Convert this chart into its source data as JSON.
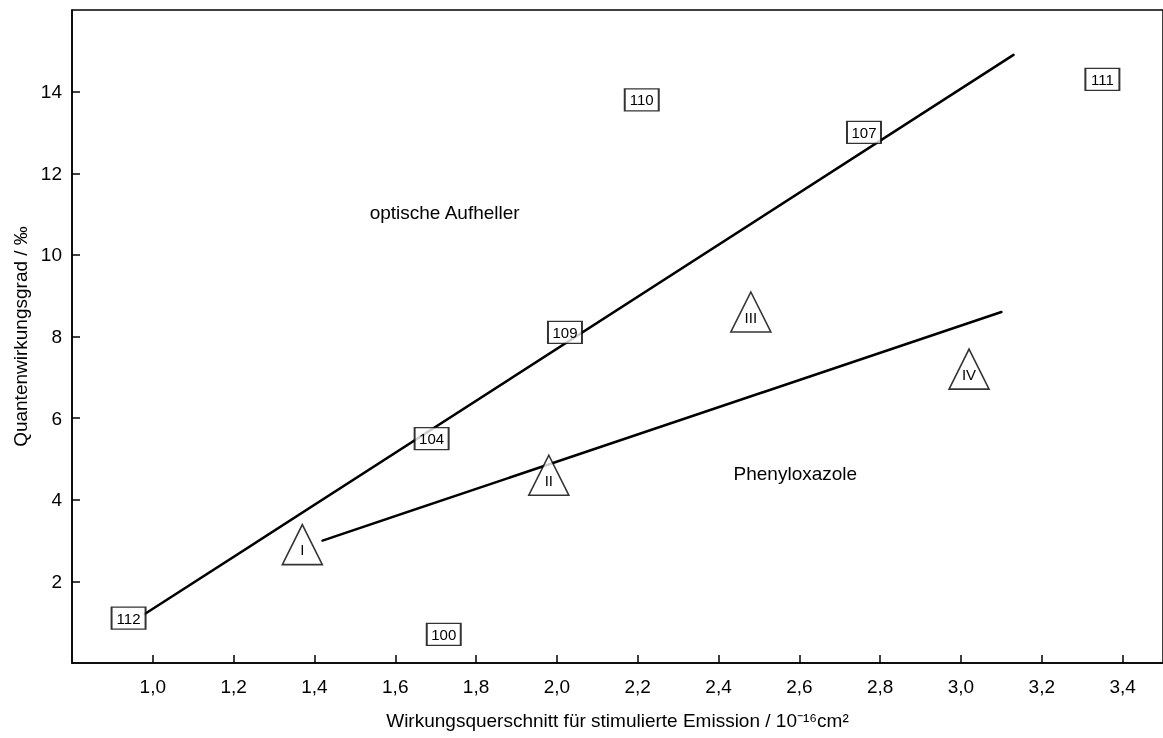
{
  "chart_data": {
    "type": "scatter",
    "xlabel": "Wirkungsquerschnitt für stimulierte Emission / 10⁻¹⁶cm²",
    "ylabel": "Quantenwirkungsgrad / ‰",
    "xlim": [
      0.8,
      3.5
    ],
    "ylim": [
      0,
      16
    ],
    "xticks": [
      {
        "value": 1.0,
        "label": "1,0"
      },
      {
        "value": 1.2,
        "label": "1,2"
      },
      {
        "value": 1.4,
        "label": "1,4"
      },
      {
        "value": 1.6,
        "label": "1,6"
      },
      {
        "value": 1.8,
        "label": "1,8"
      },
      {
        "value": 2.0,
        "label": "2,0"
      },
      {
        "value": 2.2,
        "label": "2,2"
      },
      {
        "value": 2.4,
        "label": "2,4"
      },
      {
        "value": 2.6,
        "label": "2,6"
      },
      {
        "value": 2.8,
        "label": "2,8"
      },
      {
        "value": 3.0,
        "label": "3,0"
      },
      {
        "value": 3.2,
        "label": "3,2"
      },
      {
        "value": 3.4,
        "label": "3,4"
      }
    ],
    "yticks": [
      2,
      4,
      6,
      8,
      10,
      12,
      14
    ],
    "grid": false,
    "annotations": [
      "optische Aufheller",
      "Phenyloxazole",
      {
        "text": "112",
        "x": 0.94,
        "y": 1.1
      },
      {
        "text": "104",
        "x": 1.69,
        "y": 5.5
      },
      {
        "text": "109",
        "x": 2.02,
        "y": 8.1
      },
      {
        "text": "107",
        "x": 2.76,
        "y": 13.0
      },
      {
        "text": "110",
        "x": 2.21,
        "y": 13.8
      },
      {
        "text": "111",
        "x": 3.35,
        "y": 14.3
      },
      {
        "text": "100",
        "x": 1.72,
        "y": 0.7
      },
      {
        "text": "I",
        "x": 1.37,
        "y": 2.9
      },
      {
        "text": "II",
        "x": 1.98,
        "y": 4.6
      },
      {
        "text": "III",
        "x": 2.48,
        "y": 8.6
      },
      {
        "text": "IV",
        "x": 3.02,
        "y": 7.2
      }
    ],
    "series": [
      {
        "type": "line",
        "marker": "none",
        "color": "#000000",
        "x": [
          0.98,
          3.13
        ],
        "values": [
          1.2,
          14.9
        ]
      },
      {
        "type": "line",
        "marker": "none",
        "color": "#000000",
        "x": [
          1.42,
          3.1
        ],
        "values": [
          3.0,
          8.6
        ]
      },
      {
        "marker": "square",
        "color": "#000000",
        "x": [
          0.94,
          1.69,
          2.02,
          2.76,
          2.21,
          3.35,
          1.72
        ],
        "values": [
          1.1,
          5.5,
          8.1,
          13.0,
          13.8,
          14.3,
          0.7
        ]
      },
      {
        "marker": "triangle",
        "color": "#000000",
        "x": [
          1.37,
          1.98,
          2.48,
          3.02
        ],
        "values": [
          2.9,
          4.6,
          8.6,
          7.2
        ]
      }
    ]
  }
}
